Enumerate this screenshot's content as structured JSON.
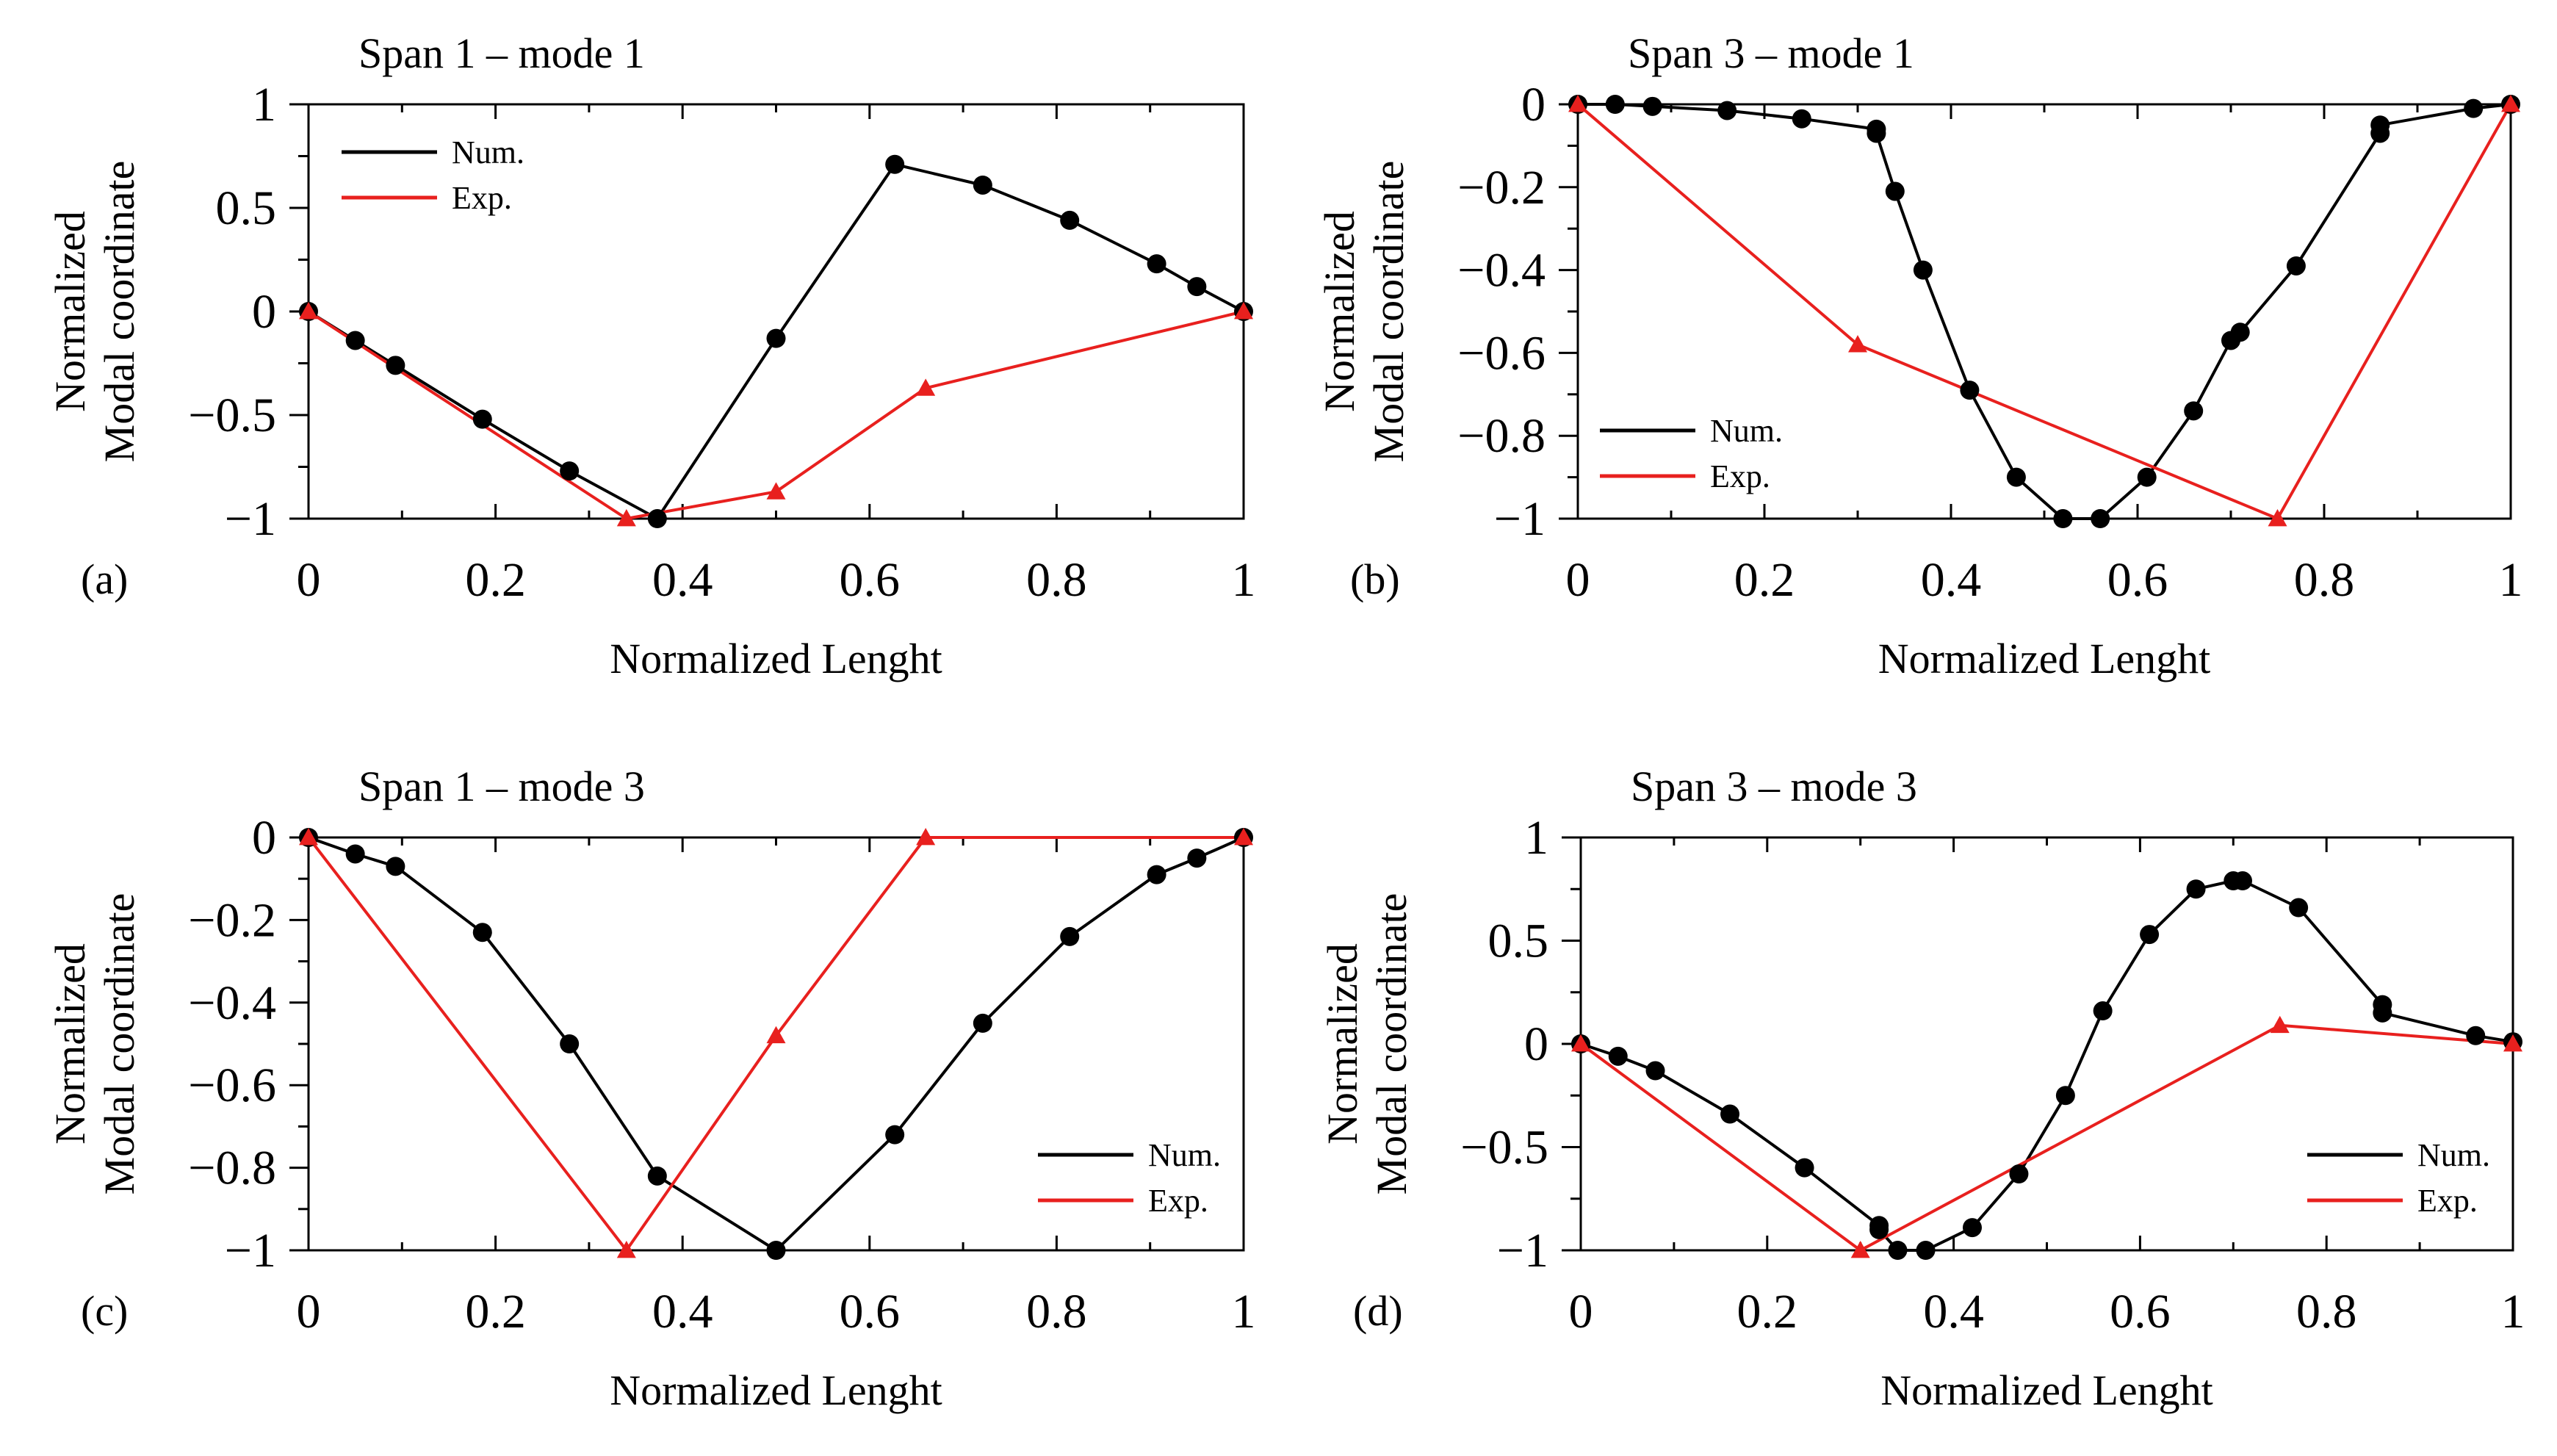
{
  "figure": {
    "colors": {
      "numerical": "#000000",
      "experimental": "#e8201e",
      "axis": "#000000",
      "background": "#ffffff"
    }
  },
  "chart_data": [
    {
      "id": "a",
      "type": "line",
      "panel_label": "(a)",
      "title": "Span 1 – mode 1",
      "xlabel": "Normalized Lenght",
      "ylabel": [
        "Normalized",
        "Modal coordinate"
      ],
      "xlim": [
        0,
        1
      ],
      "ylim": [
        -1,
        1
      ],
      "xticks": [
        0,
        0.2,
        0.4,
        0.6,
        0.8,
        1
      ],
      "xtick_labels": [
        "0",
        "0.2",
        "0.4",
        "0.6",
        "0.8",
        "1"
      ],
      "yticks": [
        1,
        0.5,
        0,
        -0.5,
        -1
      ],
      "ytick_labels": [
        "1",
        "0.5",
        "0",
        "−0.5",
        "−1"
      ],
      "legend_position": "top-left",
      "series": [
        {
          "name": "Num.",
          "color": "#000000",
          "marker": "circle",
          "x": [
            0,
            0.05,
            0.093,
            0.186,
            0.279,
            0.373,
            0.5,
            0.627,
            0.721,
            0.814,
            0.907,
            0.95,
            1
          ],
          "y": [
            0,
            -0.14,
            -0.26,
            -0.52,
            -0.77,
            -1.0,
            -0.13,
            0.71,
            0.61,
            0.44,
            0.23,
            0.12,
            0
          ]
        },
        {
          "name": "Exp.",
          "color": "#e8201e",
          "marker": "triangle",
          "x": [
            0,
            0.34,
            0.5,
            0.66,
            1
          ],
          "y": [
            0,
            -1.0,
            -0.87,
            -0.37,
            0
          ]
        }
      ]
    },
    {
      "id": "b",
      "type": "line",
      "panel_label": "(b)",
      "title": "Span 3 – mode 1",
      "xlabel": "Normalized Lenght",
      "ylabel": [
        "Normalized",
        "Modal coordinate"
      ],
      "xlim": [
        0,
        1
      ],
      "ylim": [
        -1,
        0
      ],
      "xticks": [
        0,
        0.2,
        0.4,
        0.6,
        0.8,
        1
      ],
      "xtick_labels": [
        "0",
        "0.2",
        "0.4",
        "0.6",
        "0.8",
        "1"
      ],
      "yticks": [
        0,
        -0.2,
        -0.4,
        -0.6,
        -0.8,
        -1
      ],
      "ytick_labels": [
        "0",
        "−0.2",
        "−0.4",
        "−0.6",
        "−0.8",
        "−1"
      ],
      "legend_position": "bottom-left",
      "series": [
        {
          "name": "Num.",
          "color": "#000000",
          "marker": "circle",
          "x": [
            0,
            0.04,
            0.08,
            0.16,
            0.24,
            0.32,
            0.32,
            0.34,
            0.37,
            0.42,
            0.47,
            0.52,
            0.56,
            0.61,
            0.66,
            0.7,
            0.71,
            0.77,
            0.86,
            0.86,
            0.96,
            1
          ],
          "y": [
            0,
            0,
            -0.005,
            -0.015,
            -0.035,
            -0.06,
            -0.07,
            -0.21,
            -0.4,
            -0.69,
            -0.9,
            -1.0,
            -1.0,
            -0.9,
            -0.74,
            -0.57,
            -0.55,
            -0.39,
            -0.07,
            -0.05,
            -0.01,
            0
          ]
        },
        {
          "name": "Exp.",
          "color": "#e8201e",
          "marker": "triangle",
          "x": [
            0,
            0.3,
            0.75,
            1
          ],
          "y": [
            0,
            -0.58,
            -1.0,
            0
          ]
        }
      ]
    },
    {
      "id": "c",
      "type": "line",
      "panel_label": "(c)",
      "title": "Span 1 – mode 3",
      "xlabel": "Normalized Lenght",
      "ylabel": [
        "Normalized",
        "Modal coordinate"
      ],
      "xlim": [
        0,
        1
      ],
      "ylim": [
        -1,
        0
      ],
      "xticks": [
        0,
        0.2,
        0.4,
        0.6,
        0.8,
        1
      ],
      "xtick_labels": [
        "0",
        "0.2",
        "0.4",
        "0.6",
        "0.8",
        "1"
      ],
      "yticks": [
        0,
        -0.2,
        -0.4,
        -0.6,
        -0.8,
        -1
      ],
      "ytick_labels": [
        "0",
        "−0.2",
        "−0.4",
        "−0.6",
        "−0.8",
        "−1"
      ],
      "legend_position": "bottom-right",
      "series": [
        {
          "name": "Num.",
          "color": "#000000",
          "marker": "circle",
          "x": [
            0,
            0.05,
            0.093,
            0.186,
            0.279,
            0.373,
            0.5,
            0.627,
            0.721,
            0.814,
            0.907,
            0.95,
            1
          ],
          "y": [
            0,
            -0.04,
            -0.07,
            -0.23,
            -0.5,
            -0.82,
            -1.0,
            -0.72,
            -0.45,
            -0.24,
            -0.09,
            -0.05,
            0
          ]
        },
        {
          "name": "Exp.",
          "color": "#e8201e",
          "marker": "triangle",
          "x": [
            0,
            0.34,
            0.5,
            0.66,
            1
          ],
          "y": [
            0,
            -1.0,
            -0.48,
            0,
            0
          ]
        }
      ]
    },
    {
      "id": "d",
      "type": "line",
      "panel_label": "(d)",
      "title": "Span 3 – mode 3",
      "xlabel": "Normalized Lenght",
      "ylabel": [
        "Normalized",
        "Modal coordinate"
      ],
      "xlim": [
        0,
        1
      ],
      "ylim": [
        -1,
        1
      ],
      "xticks": [
        0,
        0.2,
        0.4,
        0.6,
        0.8,
        1
      ],
      "xtick_labels": [
        "0",
        "0.2",
        "0.4",
        "0.6",
        "0.8",
        "1"
      ],
      "yticks": [
        1,
        0.5,
        0,
        -0.5,
        -1
      ],
      "ytick_labels": [
        "1",
        "0.5",
        "0",
        "−0.5",
        "−1"
      ],
      "legend_position": "bottom-right",
      "series": [
        {
          "name": "Num.",
          "color": "#000000",
          "marker": "circle",
          "x": [
            0,
            0.04,
            0.08,
            0.16,
            0.24,
            0.32,
            0.32,
            0.34,
            0.37,
            0.42,
            0.47,
            0.52,
            0.56,
            0.61,
            0.66,
            0.7,
            0.71,
            0.77,
            0.86,
            0.86,
            0.96,
            1
          ],
          "y": [
            0,
            -0.06,
            -0.13,
            -0.34,
            -0.6,
            -0.88,
            -0.9,
            -1.0,
            -1.0,
            -0.89,
            -0.63,
            -0.25,
            0.16,
            0.53,
            0.75,
            0.79,
            0.79,
            0.66,
            0.19,
            0.15,
            0.04,
            0.01
          ]
        },
        {
          "name": "Exp.",
          "color": "#e8201e",
          "marker": "triangle",
          "x": [
            0,
            0.3,
            0.75,
            1
          ],
          "y": [
            0,
            -1.0,
            0.09,
            0
          ]
        }
      ]
    }
  ]
}
